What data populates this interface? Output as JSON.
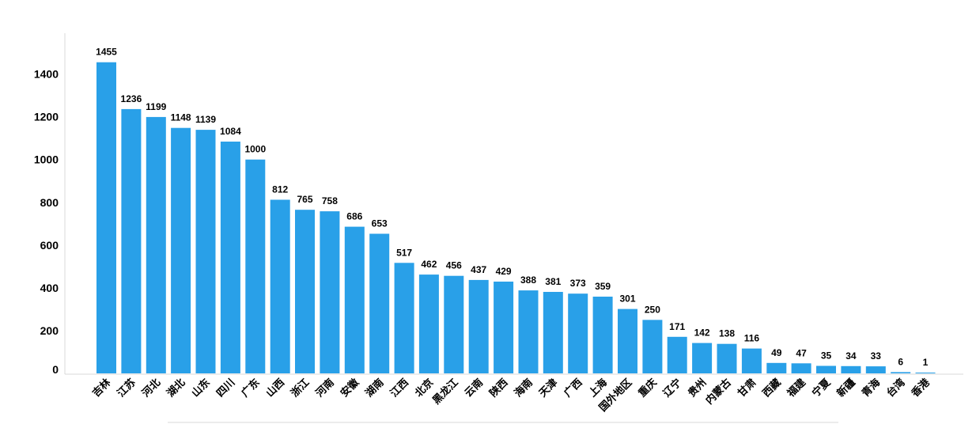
{
  "chart_data": {
    "type": "bar",
    "categories": [
      "吉林",
      "江苏",
      "河北",
      "湖北",
      "山东",
      "四川",
      "广东",
      "山西",
      "浙江",
      "河南",
      "安徽",
      "湖南",
      "江西",
      "北京",
      "黑龙江",
      "云南",
      "陕西",
      "海南",
      "天津",
      "广西",
      "上海",
      "国外地区",
      "重庆",
      "辽宁",
      "贵州",
      "内蒙古",
      "甘肃",
      "西藏",
      "福建",
      "宁夏",
      "新疆",
      "青海",
      "台湾",
      "香港"
    ],
    "values": [
      1455,
      1236,
      1199,
      1148,
      1139,
      1084,
      1000,
      812,
      765,
      758,
      686,
      653,
      517,
      462,
      456,
      437,
      429,
      388,
      381,
      373,
      359,
      301,
      250,
      171,
      142,
      138,
      116,
      49,
      47,
      35,
      34,
      33,
      6,
      1
    ],
    "ylim": [
      0,
      1450
    ],
    "yticks": [
      0,
      200,
      400,
      600,
      800,
      1000,
      1200,
      1400
    ],
    "grid": false,
    "bar_color": "#29A0E8",
    "title": "",
    "xlabel": "",
    "ylabel": ""
  }
}
